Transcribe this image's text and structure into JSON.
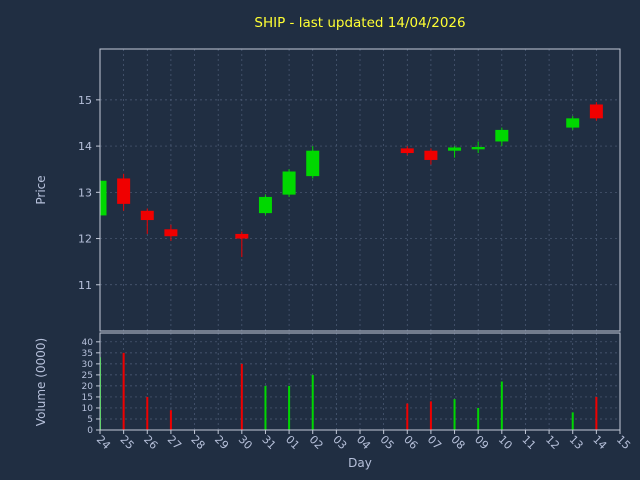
{
  "title": "SHIP - last updated 14/04/2026",
  "colors": {
    "background": "#202e42",
    "up": "#00d800",
    "down": "#f00000",
    "title": "#ffff33",
    "tick_label": "#b6c0da",
    "axis": "#c3cad8",
    "grid": "#4f5e79"
  },
  "chart_data": {
    "type": "candlestick",
    "title": "SHIP - last updated 14/04/2026",
    "xlabel": "Day",
    "price_ylabel": "Price",
    "volume_ylabel": "Volume (0000)",
    "x_ticks": [
      "24",
      "25",
      "26",
      "27",
      "28",
      "29",
      "30",
      "31",
      "01",
      "02",
      "03",
      "04",
      "05",
      "06",
      "07",
      "08",
      "09",
      "10",
      "11",
      "12",
      "13",
      "14",
      "15"
    ],
    "price_ticks": [
      11,
      12,
      13,
      14,
      15
    ],
    "price_ylim": [
      10.0,
      16.1
    ],
    "volume_ticks": [
      0,
      5,
      10,
      15,
      20,
      25,
      30,
      35,
      40
    ],
    "volume_ylim": [
      0,
      44
    ],
    "grid": "on",
    "candles": [
      {
        "day": "24",
        "open": 12.5,
        "high": 13.3,
        "low": 12.45,
        "close": 13.25,
        "volume": 33
      },
      {
        "day": "25",
        "open": 13.3,
        "high": 13.4,
        "low": 12.6,
        "close": 12.75,
        "volume": 35
      },
      {
        "day": "26",
        "open": 12.6,
        "high": 12.65,
        "low": 12.1,
        "close": 12.4,
        "volume": 15
      },
      {
        "day": "27",
        "open": 12.2,
        "high": 12.3,
        "low": 11.95,
        "close": 12.05,
        "volume": 9
      },
      {
        "day": "30",
        "open": 12.1,
        "high": 12.15,
        "low": 11.6,
        "close": 12.0,
        "volume": 30
      },
      {
        "day": "31",
        "open": 12.55,
        "high": 12.95,
        "low": 12.5,
        "close": 12.9,
        "volume": 20
      },
      {
        "day": "01",
        "open": 12.95,
        "high": 13.5,
        "low": 12.9,
        "close": 13.45,
        "volume": 20
      },
      {
        "day": "02",
        "open": 13.35,
        "high": 14.0,
        "low": 13.3,
        "close": 13.9,
        "volume": 25
      },
      {
        "day": "06",
        "open": 13.95,
        "high": 14.0,
        "low": 13.8,
        "close": 13.85,
        "volume": 12
      },
      {
        "day": "07",
        "open": 13.9,
        "high": 13.95,
        "low": 13.6,
        "close": 13.7,
        "volume": 13
      },
      {
        "day": "08",
        "open": 13.9,
        "high": 14.0,
        "low": 13.75,
        "close": 13.97,
        "volume": 14
      },
      {
        "day": "09",
        "open": 13.93,
        "high": 14.1,
        "low": 13.85,
        "close": 13.98,
        "volume": 10
      },
      {
        "day": "10",
        "open": 14.1,
        "high": 14.4,
        "low": 14.0,
        "close": 14.35,
        "volume": 22
      },
      {
        "day": "13",
        "open": 14.4,
        "high": 14.65,
        "low": 14.35,
        "close": 14.6,
        "volume": 8
      },
      {
        "day": "14",
        "open": 14.9,
        "high": 14.95,
        "low": 14.55,
        "close": 14.6,
        "volume": 15
      }
    ]
  }
}
